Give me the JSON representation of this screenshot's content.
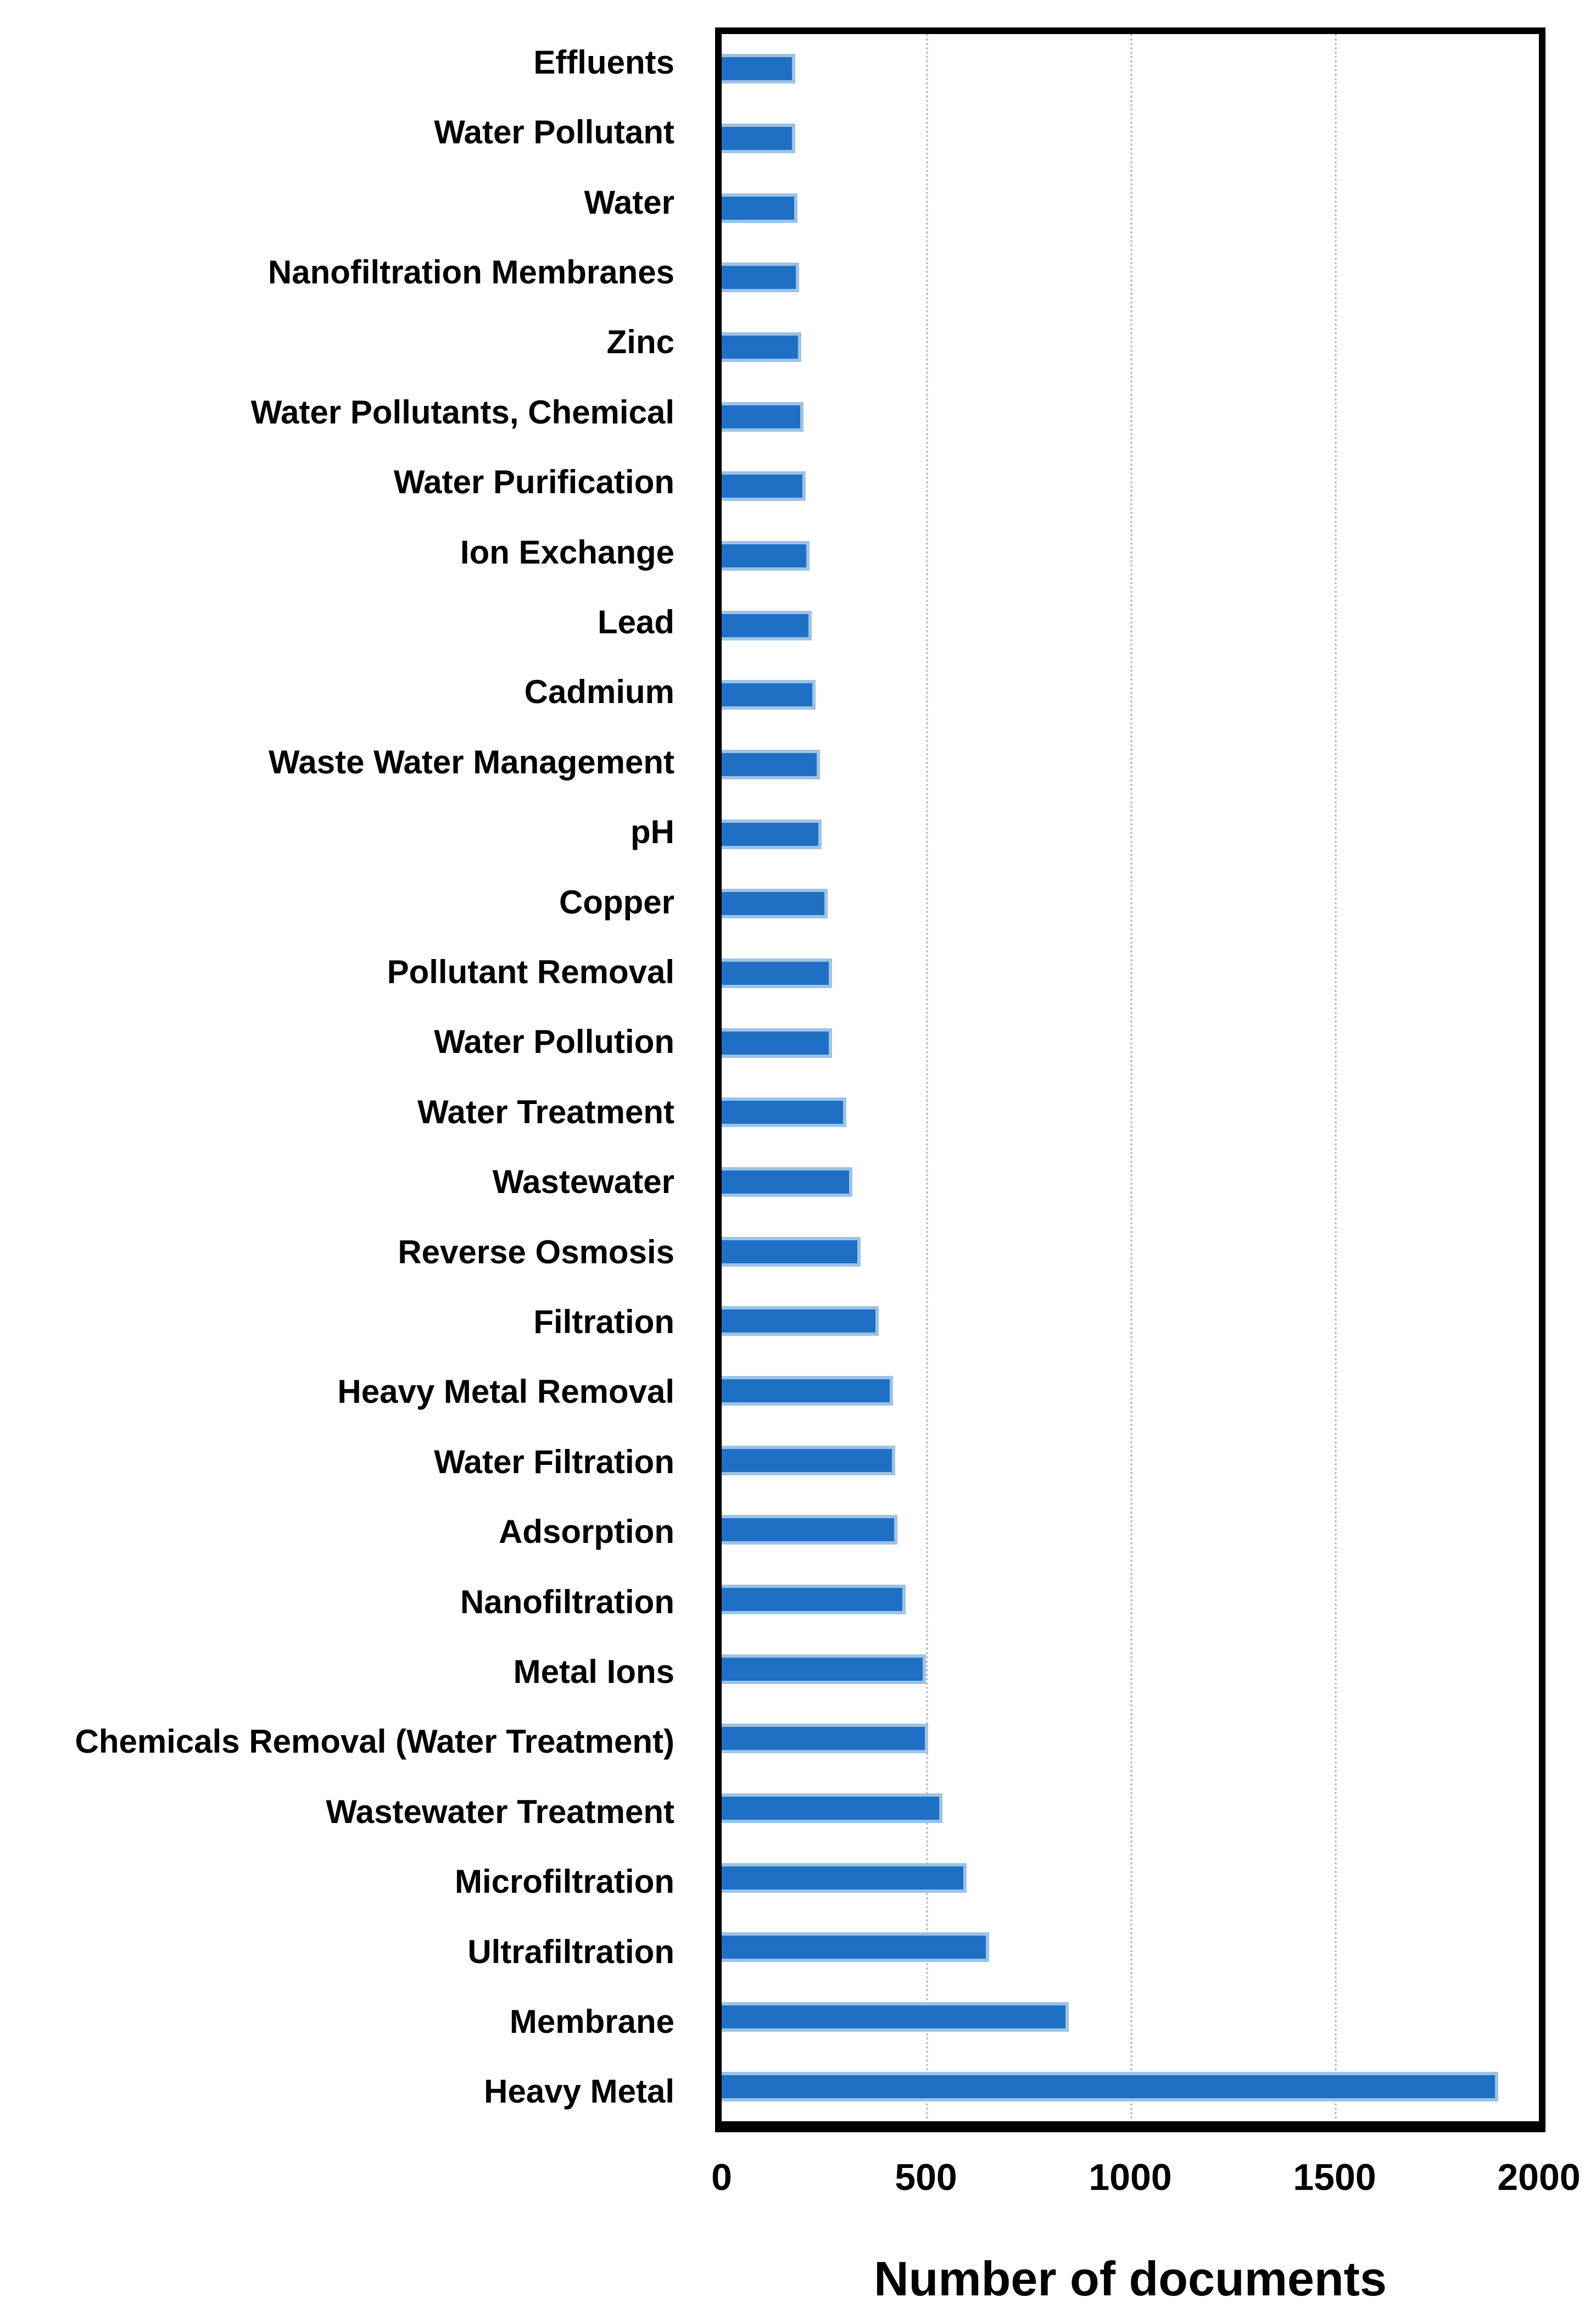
{
  "chart_data": {
    "type": "bar",
    "orientation": "horizontal",
    "title": "",
    "xlabel": "Number of documents",
    "ylabel": "",
    "categories": [
      "Effluents",
      "Water Pollutant",
      "Water",
      "Nanofiltration Membranes",
      "Zinc",
      "Water Pollutants, Chemical",
      "Water Purification",
      "Ion Exchange",
      "Lead",
      "Cadmium",
      "Waste Water Management",
      "pH",
      "Copper",
      "Pollutant Removal",
      "Water Pollution",
      "Water Treatment",
      "Wastewater",
      "Reverse Osmosis",
      "Filtration",
      "Heavy Metal Removal",
      "Water Filtration",
      "Adsorption",
      "Nanofiltration",
      "Metal Ions",
      "Chemicals Removal (Water Treatment)",
      "Wastewater Treatment",
      "Microfiltration",
      "Ultrafiltration",
      "Membrane",
      "Heavy Metal"
    ],
    "values": [
      180,
      180,
      185,
      190,
      195,
      200,
      205,
      215,
      220,
      230,
      240,
      245,
      260,
      270,
      270,
      305,
      320,
      340,
      385,
      420,
      425,
      430,
      450,
      500,
      505,
      540,
      600,
      655,
      850,
      1900
    ],
    "xlim": [
      0,
      2000
    ],
    "xticks": [
      0,
      500,
      1000,
      1500,
      2000
    ],
    "xtick_labels": [
      "0",
      "500",
      "1000",
      "1500",
      "2000"
    ],
    "grid": "vertical dotted gridlines at interior ticks",
    "legend_position": "none",
    "colors": {
      "bar_fill": "#1f70c4",
      "bar_edge": "#9dc3e6",
      "frame": "#000000",
      "gridline": "#bdbdbd",
      "text": "#000000",
      "background": "#ffffff"
    }
  }
}
